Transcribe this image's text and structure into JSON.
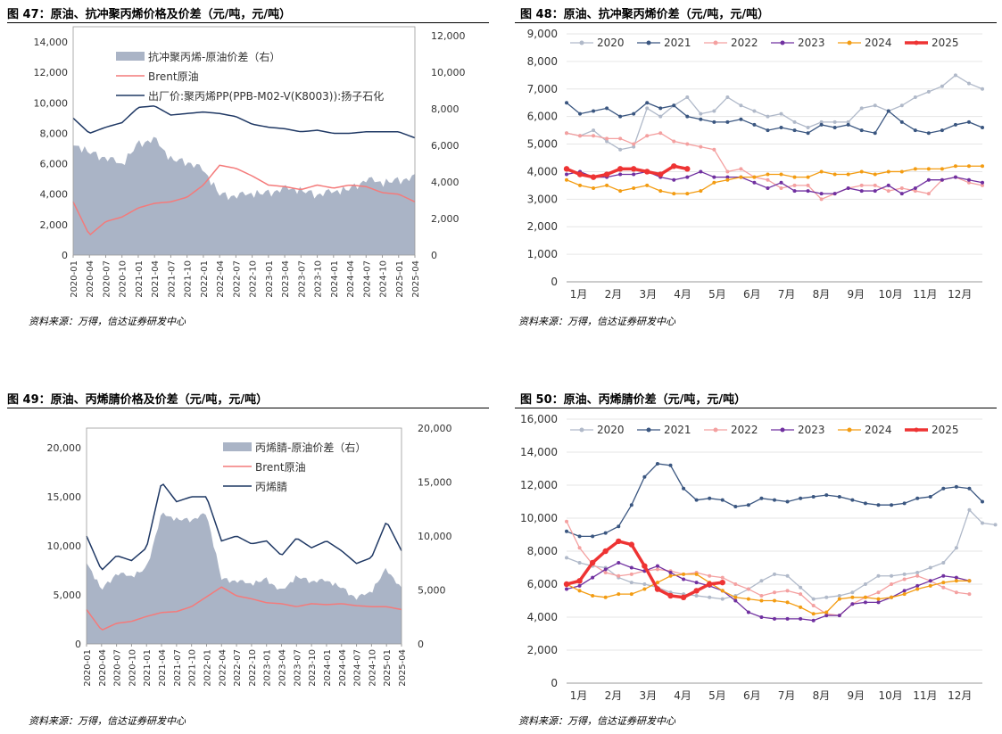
{
  "colors": {
    "spread_fill": "#aab4c6",
    "brent": "#f47a7a",
    "product": "#1f3864",
    "y2020": "#b0b9c9",
    "y2021": "#3a5680",
    "y2022": "#f4a0a0",
    "y2023": "#7030a0",
    "y2024": "#f39c12",
    "y2025": "#ee3333"
  },
  "source_text": "资料来源：万得，信达证券研发中心",
  "chart_data": [
    {
      "id": "c47",
      "type": "line",
      "title": "图 47：原油、抗冲聚丙烯价格及价差（元/吨，元/吨）",
      "x_ticks": [
        "2020-01",
        "2020-04",
        "2020-07",
        "2020-10",
        "2021-01",
        "2021-04",
        "2021-07",
        "2021-10",
        "2022-01",
        "2022-04",
        "2022-07",
        "2022-10",
        "2023-01",
        "2023-04",
        "2023-07",
        "2023-10",
        "2024-01",
        "2024-04",
        "2024-07",
        "2024-10",
        "2025-01",
        "2025-04"
      ],
      "y_left_ticks": [
        "0",
        "2,000",
        "4,000",
        "6,000",
        "8,000",
        "10,000",
        "12,000",
        "14,000"
      ],
      "y_left_range": [
        0,
        15000
      ],
      "y_right_ticks": [
        "0",
        "2,000",
        "4,000",
        "6,000",
        "8,000",
        "10,000",
        "12,000"
      ],
      "y_right_range": [
        0,
        12500
      ],
      "legend": [
        "抗冲聚丙烯-原油价差（右）",
        "Brent原油",
        "出厂价:聚丙烯PP(PPB-M02-V(K8003)):扬子石化"
      ],
      "months": [
        "2020-01",
        "2020-04",
        "2020-07",
        "2020-10",
        "2021-01",
        "2021-04",
        "2021-07",
        "2021-10",
        "2022-01",
        "2022-04",
        "2022-07",
        "2022-10",
        "2023-01",
        "2023-04",
        "2023-07",
        "2023-10",
        "2024-01",
        "2024-04",
        "2024-07",
        "2024-10",
        "2025-01",
        "2025-04"
      ],
      "series": [
        {
          "name": "抗冲聚丙烯-原油价差（右）",
          "axis": "right",
          "kind": "area",
          "values": [
            6000,
            5600,
            5300,
            4900,
            6100,
            6300,
            5200,
            5100,
            4600,
            3300,
            3200,
            3300,
            3400,
            3600,
            3500,
            3300,
            3400,
            3600,
            4100,
            3900,
            4100,
            4200
          ]
        },
        {
          "name": "Brent原油",
          "axis": "left",
          "kind": "line",
          "values": [
            3500,
            1300,
            2200,
            2500,
            3100,
            3400,
            3500,
            3800,
            4600,
            5900,
            5700,
            5200,
            4600,
            4500,
            4300,
            4600,
            4400,
            4600,
            4500,
            4100,
            4000,
            3500
          ]
        },
        {
          "name": "出厂价:聚丙烯PP(PPB-M02-V(K8003)):扬子石化",
          "axis": "left",
          "kind": "line",
          "values": [
            9000,
            8000,
            8400,
            8700,
            9700,
            9800,
            9200,
            9300,
            9400,
            9300,
            9100,
            8600,
            8400,
            8300,
            8100,
            8200,
            8000,
            8000,
            8100,
            8100,
            8100,
            7700
          ]
        }
      ]
    },
    {
      "id": "c48",
      "type": "line",
      "title": "图 48：原油、抗冲聚丙烯价差（元/吨，元/吨）",
      "x_labels": [
        "1月",
        "2月",
        "3月",
        "4月",
        "5月",
        "6月",
        "7月",
        "8月",
        "9月",
        "10月",
        "11月",
        "12月"
      ],
      "y_ticks": [
        "0",
        "1,000",
        "2,000",
        "3,000",
        "4,000",
        "5,000",
        "6,000",
        "7,000",
        "8,000",
        "9,000"
      ],
      "y_range": [
        0,
        9000
      ],
      "series": [
        {
          "name": "2020",
          "values": [
            5400,
            5300,
            5500,
            5100,
            4800,
            4900,
            6300,
            6000,
            6400,
            6700,
            6100,
            6200,
            6700,
            6400,
            6200,
            6000,
            6100,
            5800,
            5600,
            5800,
            5800,
            5800,
            6300,
            6400,
            6200,
            6400,
            6700,
            6900,
            7100,
            7500,
            7200,
            7000
          ]
        },
        {
          "name": "2021",
          "values": [
            6500,
            6100,
            6200,
            6300,
            6000,
            6100,
            6500,
            6300,
            6400,
            6000,
            5900,
            5800,
            5800,
            5900,
            5700,
            5500,
            5600,
            5500,
            5400,
            5700,
            5600,
            5700,
            5500,
            5400,
            6200,
            5800,
            5500,
            5400,
            5500,
            5700,
            5800,
            5600
          ]
        },
        {
          "name": "2022",
          "values": [
            5400,
            5300,
            5300,
            5200,
            5200,
            5000,
            5300,
            5400,
            5100,
            5000,
            4900,
            4800,
            4000,
            4100,
            3800,
            3700,
            3400,
            3500,
            3500,
            3000,
            3200,
            3400,
            3500,
            3500,
            3300,
            3400,
            3300,
            3200,
            3700,
            3800,
            3600,
            3500
          ]
        },
        {
          "name": "2023",
          "values": [
            3900,
            4000,
            3800,
            3800,
            3900,
            3900,
            4000,
            3800,
            3700,
            3800,
            4000,
            3800,
            3800,
            3800,
            3600,
            3400,
            3600,
            3300,
            3300,
            3200,
            3200,
            3400,
            3300,
            3300,
            3500,
            3200,
            3400,
            3700,
            3700,
            3800,
            3700,
            3600
          ]
        },
        {
          "name": "2024",
          "values": [
            3700,
            3500,
            3400,
            3500,
            3300,
            3400,
            3500,
            3300,
            3200,
            3200,
            3300,
            3600,
            3700,
            3800,
            3800,
            3900,
            3900,
            3800,
            3800,
            4000,
            3900,
            3900,
            4000,
            3900,
            4000,
            4000,
            4100,
            4100,
            4100,
            4200,
            4200,
            4200
          ]
        },
        {
          "name": "2025",
          "values": [
            4100,
            3900,
            3800,
            3900,
            4100,
            4100,
            4000,
            3900,
            4200,
            4100
          ]
        }
      ],
      "pts_per_year": 32
    },
    {
      "id": "c49",
      "type": "line",
      "title": "图 49：原油、丙烯腈价格及价差（元/吨，元/吨）",
      "x_ticks": [
        "2020-01",
        "2020-04",
        "2020-07",
        "2020-10",
        "2021-01",
        "2021-04",
        "2021-07",
        "2021-10",
        "2022-01",
        "2022-04",
        "2022-07",
        "2022-10",
        "2023-01",
        "2023-04",
        "2023-07",
        "2023-10",
        "2024-01",
        "2024-04",
        "2024-07",
        "2024-10",
        "2025-01",
        "2025-04"
      ],
      "y_left_ticks": [
        "0",
        "5,000",
        "10,000",
        "15,000",
        "20,000"
      ],
      "y_left_range": [
        0,
        22000
      ],
      "y_right_ticks": [
        "0",
        "5,000",
        "10,000",
        "15,000",
        "20,000"
      ],
      "y_right_range": [
        0,
        20000
      ],
      "legend": [
        "丙烯腈-原油价差（右）",
        "Brent原油",
        "丙烯腈"
      ],
      "series": [
        {
          "name": "丙烯腈-原油价差（右）",
          "axis": "right",
          "kind": "area",
          "values": [
            7500,
            5000,
            6500,
            6200,
            7000,
            12000,
            11500,
            11500,
            12000,
            6000,
            5800,
            5500,
            6000,
            4800,
            6200,
            5800,
            5800,
            5200,
            4200,
            4800,
            7000,
            5000
          ]
        },
        {
          "name": "Brent原油",
          "axis": "left",
          "kind": "line",
          "values": [
            3500,
            1400,
            2100,
            2300,
            2800,
            3200,
            3300,
            3800,
            4800,
            5800,
            4900,
            4600,
            4200,
            4100,
            3800,
            4100,
            4000,
            4100,
            3900,
            3800,
            3800,
            3500
          ]
        },
        {
          "name": "丙烯腈",
          "axis": "left",
          "kind": "line",
          "values": [
            11000,
            7500,
            9000,
            8500,
            9800,
            16500,
            14500,
            15000,
            15000,
            10500,
            11000,
            10200,
            10500,
            9000,
            10800,
            9800,
            10500,
            9500,
            8200,
            8800,
            12500,
            9500
          ]
        }
      ]
    },
    {
      "id": "c50",
      "type": "line",
      "title": "图 50：原油、丙烯腈价差（元/吨，元/吨）",
      "x_labels": [
        "1月",
        "2月",
        "3月",
        "4月",
        "5月",
        "6月",
        "7月",
        "8月",
        "9月",
        "10月",
        "11月",
        "12月"
      ],
      "y_ticks": [
        "0",
        "2,000",
        "4,000",
        "6,000",
        "8,000",
        "10,000",
        "12,000",
        "14,000",
        "16,000"
      ],
      "y_range": [
        0,
        16000
      ],
      "series": [
        {
          "name": "2020",
          "values": [
            7600,
            7300,
            7100,
            7000,
            6400,
            6100,
            6000,
            5800,
            5500,
            5400,
            5300,
            5200,
            5100,
            5300,
            5700,
            6200,
            6600,
            6500,
            5800,
            5100,
            5200,
            5300,
            5500,
            6000,
            6500,
            6500,
            6600,
            6700,
            7000,
            7300,
            8200,
            10500,
            9700,
            9600
          ]
        },
        {
          "name": "2021",
          "values": [
            9200,
            8900,
            8900,
            9100,
            9500,
            10800,
            12500,
            13300,
            13200,
            11800,
            11100,
            11200,
            11100,
            10700,
            10800,
            11200,
            11100,
            11000,
            11200,
            11300,
            11400,
            11300,
            11100,
            10900,
            10800,
            10800,
            10900,
            11200,
            11300,
            11800,
            11900,
            11800,
            11000
          ]
        },
        {
          "name": "2022",
          "values": [
            9800,
            8200,
            7200,
            6700,
            6500,
            6600,
            6800,
            6900,
            6800,
            6600,
            6700,
            6500,
            6400,
            6000,
            5700,
            5300,
            5500,
            5600,
            5400,
            4700,
            4200,
            4100,
            4800,
            5200,
            5500,
            6000,
            6300,
            6500,
            6200,
            5800,
            5500,
            5400
          ]
        },
        {
          "name": "2023",
          "values": [
            5700,
            5900,
            6400,
            6900,
            7300,
            7000,
            6800,
            7100,
            6700,
            6300,
            6100,
            5900,
            5600,
            5000,
            4300,
            4000,
            3900,
            3900,
            3900,
            3800,
            4100,
            4100,
            4800,
            4900,
            4900,
            5200,
            5600,
            5900,
            6200,
            6500,
            6400,
            6200
          ]
        },
        {
          "name": "2024",
          "values": [
            6000,
            5600,
            5300,
            5200,
            5400,
            5400,
            5700,
            6100,
            6500,
            6600,
            6600,
            6100,
            5600,
            5200,
            5100,
            5000,
            5000,
            4900,
            4600,
            4200,
            4300,
            5100,
            5200,
            5200,
            5100,
            5200,
            5400,
            5700,
            5900,
            6100,
            6200,
            6200
          ]
        },
        {
          "name": "2025",
          "values": [
            6000,
            6200,
            7300,
            8000,
            8600,
            8400,
            7100,
            5700,
            5300,
            5200,
            5600,
            6000,
            6100
          ]
        }
      ],
      "pts_per_year": 33
    }
  ]
}
